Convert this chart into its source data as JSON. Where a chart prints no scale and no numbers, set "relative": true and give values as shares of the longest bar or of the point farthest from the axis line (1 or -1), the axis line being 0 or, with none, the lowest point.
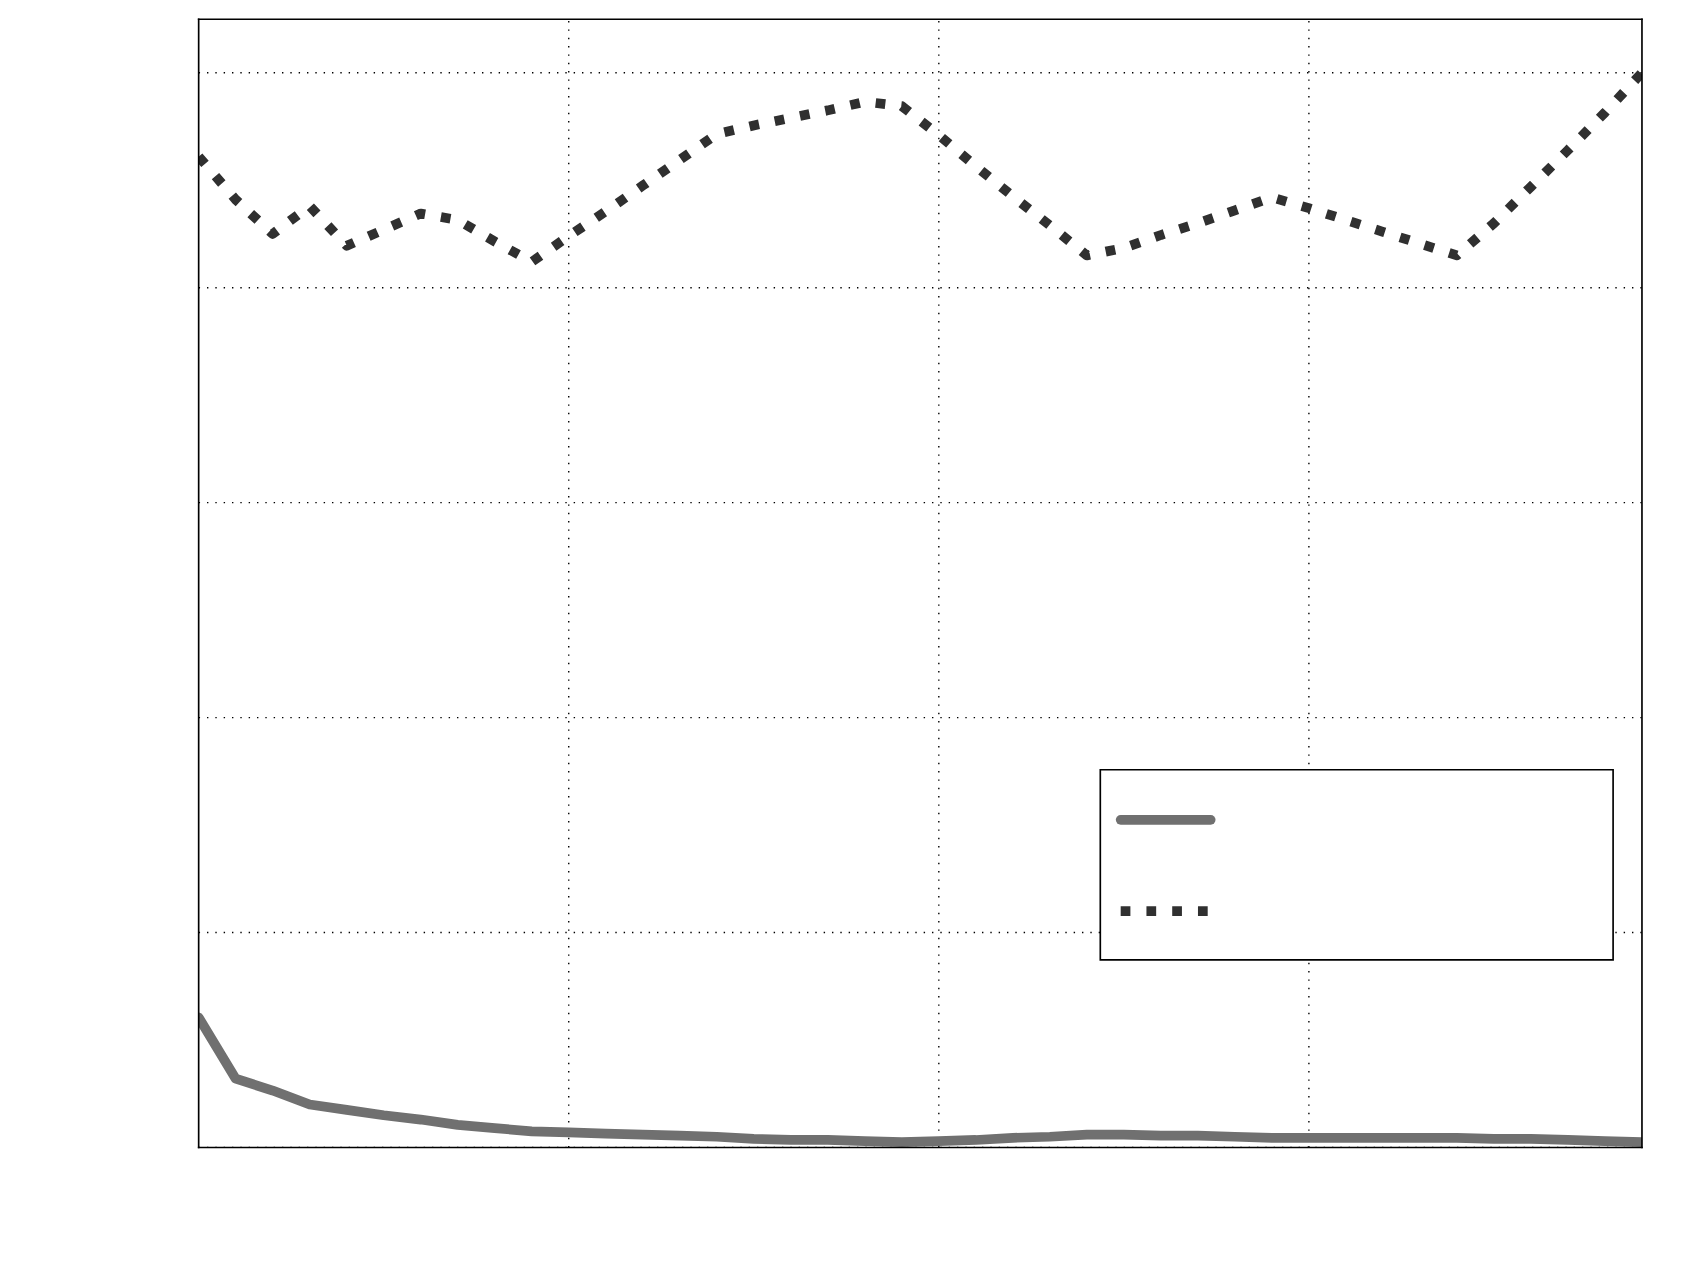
{
  "chart_data": {
    "type": "line",
    "relative": true,
    "categories": [
      null,
      null,
      null,
      null,
      null,
      null,
      null,
      null,
      null,
      null,
      null,
      null,
      null,
      null,
      null,
      null,
      null,
      null,
      null,
      null,
      null,
      null,
      null,
      null,
      null,
      null,
      null,
      null,
      null,
      null,
      null,
      null,
      null,
      null,
      null,
      null,
      null,
      null,
      null,
      null
    ],
    "series": [
      {
        "color": "#707070",
        "line_style": "solid",
        "values": [
          0.121,
          0.064,
          0.053,
          0.04,
          0.035,
          0.03,
          0.026,
          0.021,
          0.018,
          0.015,
          0.014,
          0.013,
          0.012,
          0.011,
          0.01,
          0.008,
          0.007,
          0.007,
          0.006,
          0.005,
          0.006,
          0.007,
          0.009,
          0.01,
          0.012,
          0.012,
          0.011,
          0.011,
          0.01,
          0.009,
          0.009,
          0.009,
          0.009,
          0.009,
          0.009,
          0.008,
          0.008,
          0.007,
          0.006,
          0.005
        ]
      },
      {
        "color": "#303030",
        "line_style": "dotted",
        "values": [
          0.922,
          0.882,
          0.85,
          0.876,
          0.839,
          0.854,
          0.869,
          0.863,
          0.843,
          0.824,
          0.848,
          0.871,
          0.895,
          0.919,
          0.943,
          0.951,
          0.958,
          0.965,
          0.973,
          0.969,
          0.942,
          0.913,
          0.885,
          0.858,
          0.83,
          0.837,
          0.849,
          0.86,
          0.872,
          0.884,
          0.874,
          0.863,
          0.852,
          0.841,
          0.83,
          0.86,
          0.894,
          0.928,
          0.963,
          1.0
        ]
      }
    ],
    "grid": true
  }
}
